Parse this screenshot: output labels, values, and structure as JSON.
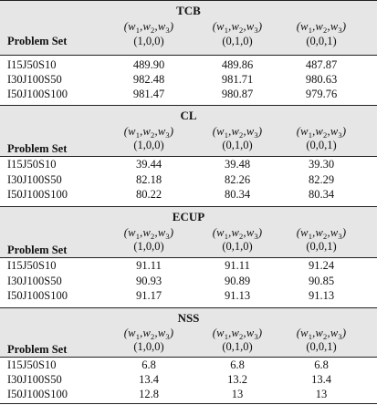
{
  "weight_header": "(w1, w2, w3)",
  "problem_set_label": "Problem Set",
  "weights": [
    "(1,0,0)",
    "(0,1,0)",
    "(0,0,1)"
  ],
  "sections": [
    {
      "title": "TCB",
      "rows": [
        {
          "name": "I15J50S10",
          "values": [
            "489.90",
            "489.86",
            "487.87"
          ]
        },
        {
          "name": "I30J100S50",
          "values": [
            "982.48",
            "981.71",
            "980.63"
          ]
        },
        {
          "name": "I50J100S100",
          "values": [
            "981.47",
            "980.87",
            "979.76"
          ]
        }
      ]
    },
    {
      "title": "CL",
      "rows": [
        {
          "name": "I15J50S10",
          "values": [
            "39.44",
            "39.48",
            "39.30"
          ]
        },
        {
          "name": "I30J100S50",
          "values": [
            "82.18",
            "82.26",
            "82.29"
          ]
        },
        {
          "name": "I50J100S100",
          "values": [
            "80.22",
            "80.34",
            "80.34"
          ]
        }
      ]
    },
    {
      "title": "ECUP",
      "rows": [
        {
          "name": "I15J50S10",
          "values": [
            "91.11",
            "91.11",
            "91.24"
          ]
        },
        {
          "name": "I30J100S50",
          "values": [
            "90.93",
            "90.89",
            "90.85"
          ]
        },
        {
          "name": "I50J100S100",
          "values": [
            "91.17",
            "91.13",
            "91.13"
          ]
        }
      ]
    },
    {
      "title": "NSS",
      "rows": [
        {
          "name": "I15J50S10",
          "values": [
            "6.8",
            "6.8",
            "6.8"
          ]
        },
        {
          "name": "I30J100S50",
          "values": [
            "13.4",
            "13.2",
            "13.4"
          ]
        },
        {
          "name": "I50J100S100",
          "values": [
            "12.8",
            "13",
            "13"
          ]
        }
      ]
    }
  ]
}
